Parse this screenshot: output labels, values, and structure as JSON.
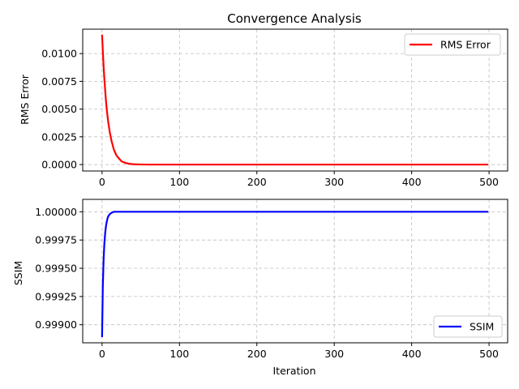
{
  "chart_data": [
    {
      "type": "line",
      "title": "Convergence Analysis",
      "xlabel": "",
      "ylabel": "RMS Error",
      "xlim": [
        -25,
        524
      ],
      "ylim": [
        -0.00058,
        0.0122
      ],
      "xticks": [
        0,
        100,
        200,
        300,
        400,
        500
      ],
      "xtick_labels": [
        "0",
        "100",
        "200",
        "300",
        "400",
        "500"
      ],
      "yticks": [
        0.0,
        0.0025,
        0.005,
        0.0075,
        0.01
      ],
      "ytick_labels": [
        "0.0000",
        "0.0025",
        "0.0050",
        "0.0075",
        "0.0100"
      ],
      "grid": true,
      "legend_position": "upper right",
      "series": [
        {
          "name": "RMS Error",
          "color": "#ff0000",
          "x": [
            0,
            1,
            2,
            3,
            4,
            5,
            6,
            8,
            10,
            12,
            15,
            18,
            20,
            25,
            30,
            35,
            40,
            50,
            60,
            80,
            100,
            150,
            200,
            300,
            400,
            499
          ],
          "y": [
            0.0117,
            0.0102,
            0.0088,
            0.0077,
            0.0067,
            0.0058,
            0.005,
            0.0038,
            0.0029,
            0.0022,
            0.0014,
            0.0009,
            0.0007,
            0.0003,
            0.00015,
            7e-05,
            3e-05,
            1e-05,
            0.0,
            0.0,
            0.0,
            0.0,
            0.0,
            0.0,
            0.0,
            0.0
          ]
        }
      ]
    },
    {
      "type": "line",
      "title": "",
      "xlabel": "Iteration",
      "ylabel": "SSIM",
      "xlim": [
        -25,
        524
      ],
      "ylim": [
        0.99884,
        1.00011
      ],
      "xticks": [
        0,
        100,
        200,
        300,
        400,
        500
      ],
      "xtick_labels": [
        "0",
        "100",
        "200",
        "300",
        "400",
        "500"
      ],
      "yticks": [
        0.999,
        0.99925,
        0.9995,
        0.99975,
        1.0
      ],
      "ytick_labels": [
        "0.99900",
        "0.99925",
        "0.99950",
        "0.99975",
        "1.00000"
      ],
      "grid": true,
      "legend_position": "lower right",
      "series": [
        {
          "name": "SSIM",
          "color": "#0000ff",
          "x": [
            0,
            1,
            2,
            3,
            4,
            5,
            6,
            7,
            8,
            10,
            12,
            15,
            20,
            30,
            50,
            100,
            200,
            300,
            400,
            499
          ],
          "y": [
            0.99889,
            0.99935,
            0.99958,
            0.99972,
            0.99981,
            0.99987,
            0.99991,
            0.99994,
            0.99996,
            0.99998,
            0.99999,
            1.0,
            1.0,
            1.0,
            1.0,
            1.0,
            1.0,
            1.0,
            1.0,
            1.0
          ]
        }
      ]
    }
  ]
}
